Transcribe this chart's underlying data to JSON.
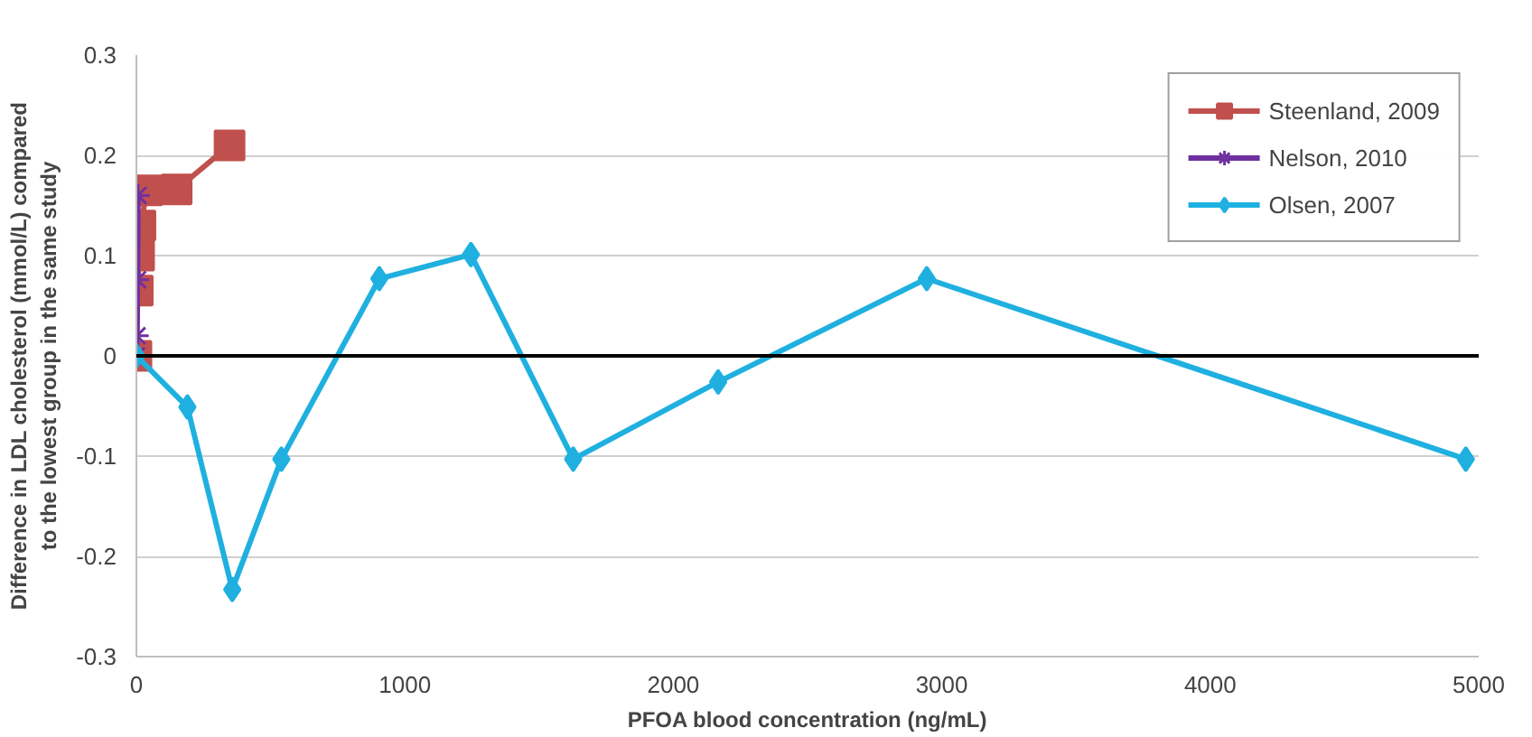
{
  "chart_data": {
    "type": "line",
    "xlabel": "PFOA blood concentration (ng/mL)",
    "ylabel": "Difference in LDL cholesterol (mmol/L) compared to the lowest group in the same study",
    "xlim": [
      0,
      5000
    ],
    "xticks": [
      0,
      1000,
      2000,
      3000,
      4000,
      5000
    ],
    "ylim": [
      -0.3,
      0.3
    ],
    "yticks": [
      -0.3,
      -0.2,
      -0.1,
      0,
      0.1,
      0.2,
      0.3
    ],
    "grid": "y",
    "legend": "top right",
    "ref_lines": [
      {
        "axis": "y",
        "value": 0,
        "color": "#000000"
      }
    ],
    "series": [
      {
        "name": "Steenland, 2009",
        "color": "#c0504d",
        "marker": "square",
        "x": [
          0,
          5,
          10,
          15,
          40,
          150,
          347
        ],
        "values": [
          0,
          0.065,
          0.1,
          0.13,
          0.165,
          0.166,
          0.21
        ]
      },
      {
        "name": "Nelson, 2010",
        "color": "#7030a0",
        "marker": "cross",
        "x": [
          0,
          2,
          4,
          6
        ],
        "values": [
          0,
          0.02,
          0.076,
          0.16
        ]
      },
      {
        "name": "Olsen, 2007",
        "color": "#1fb0e0",
        "marker": "diamond",
        "x": [
          0,
          190,
          357,
          540,
          905,
          1246,
          1627,
          2167,
          2944,
          4952
        ],
        "values": [
          0,
          -0.051,
          -0.233,
          -0.103,
          0.077,
          0.101,
          -0.103,
          -0.026,
          0.077,
          -0.103
        ]
      }
    ]
  }
}
